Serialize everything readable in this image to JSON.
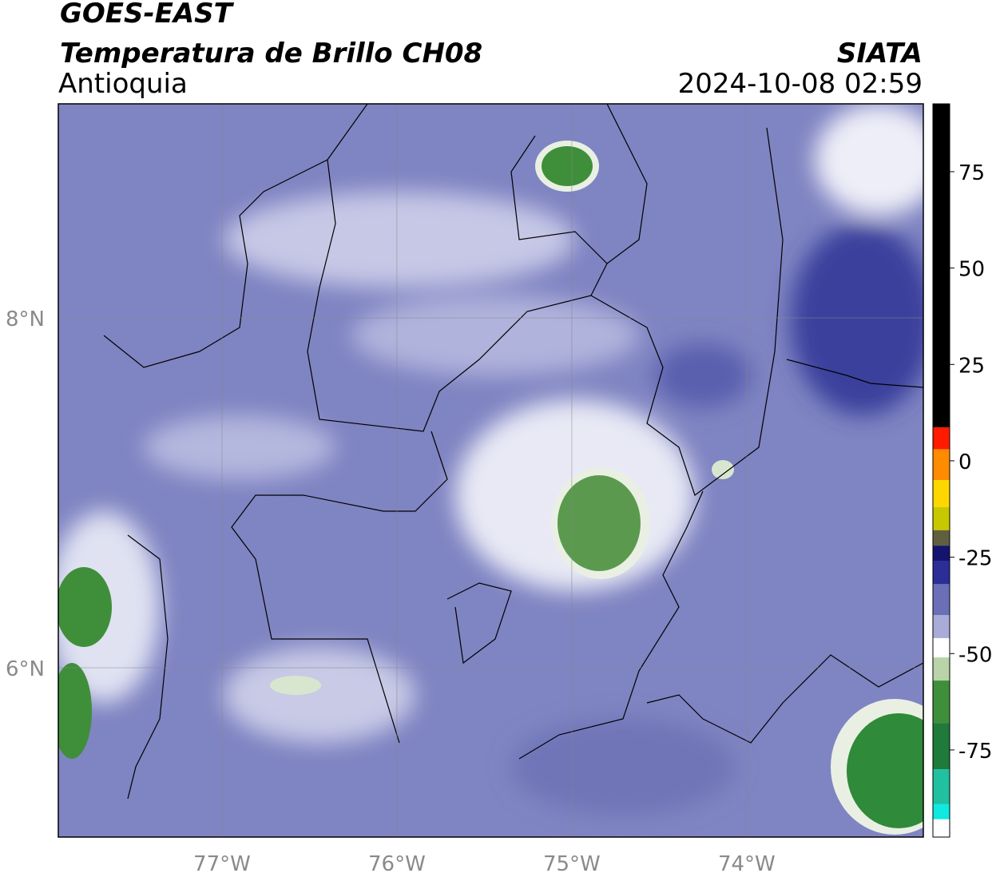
{
  "header": {
    "title": "GOES-EAST",
    "product": "Temperatura de Brillo CH08",
    "region": "Antioquia",
    "source": "SIATA",
    "timestamp": "2024-10-08 02:59"
  },
  "map": {
    "lon_lim": [
      -77.936,
      -72.99
    ],
    "lat_lim": [
      5.032,
      9.224
    ],
    "lon_ticks": [
      {
        "value": -77,
        "label": "77°W"
      },
      {
        "value": -76,
        "label": "76°W"
      },
      {
        "value": -75,
        "label": "75°W"
      },
      {
        "value": -74,
        "label": "74°W"
      }
    ],
    "lat_ticks": [
      {
        "value": 8,
        "label": "8°N"
      },
      {
        "value": 6,
        "label": "6°N"
      }
    ],
    "grid": true
  },
  "colorbar": {
    "range": [
      -97.6,
      92.6
    ],
    "ticks": [
      75,
      50,
      25,
      0,
      -25,
      -50,
      -75
    ],
    "stops": [
      {
        "from": 8.7,
        "to": 92.6,
        "color": "#000000"
      },
      {
        "from": 3,
        "to": 8.7,
        "color": "#ff1a00"
      },
      {
        "from": -5,
        "to": 3,
        "color": "#ff8c00"
      },
      {
        "from": -12,
        "to": -5,
        "color": "#ffd700"
      },
      {
        "from": -18,
        "to": -12,
        "color": "#c8c800"
      },
      {
        "from": -22,
        "to": -18,
        "color": "#606040"
      },
      {
        "from": -26,
        "to": -22,
        "color": "#14146e"
      },
      {
        "from": -32,
        "to": -26,
        "color": "#2a2e96"
      },
      {
        "from": -40,
        "to": -32,
        "color": "#6a6fb8"
      },
      {
        "from": -46,
        "to": -40,
        "color": "#a9acd8"
      },
      {
        "from": -51,
        "to": -46,
        "color": "#ffffff"
      },
      {
        "from": -57,
        "to": -51,
        "color": "#b8d4a8"
      },
      {
        "from": -68,
        "to": -57,
        "color": "#3f8f3a"
      },
      {
        "from": -80,
        "to": -68,
        "color": "#207a3a"
      },
      {
        "from": -89,
        "to": -80,
        "color": "#20c0a0"
      },
      {
        "from": -93,
        "to": -89,
        "color": "#10e8e0"
      },
      {
        "from": -97.6,
        "to": -93,
        "color": "#ffffff"
      }
    ]
  }
}
